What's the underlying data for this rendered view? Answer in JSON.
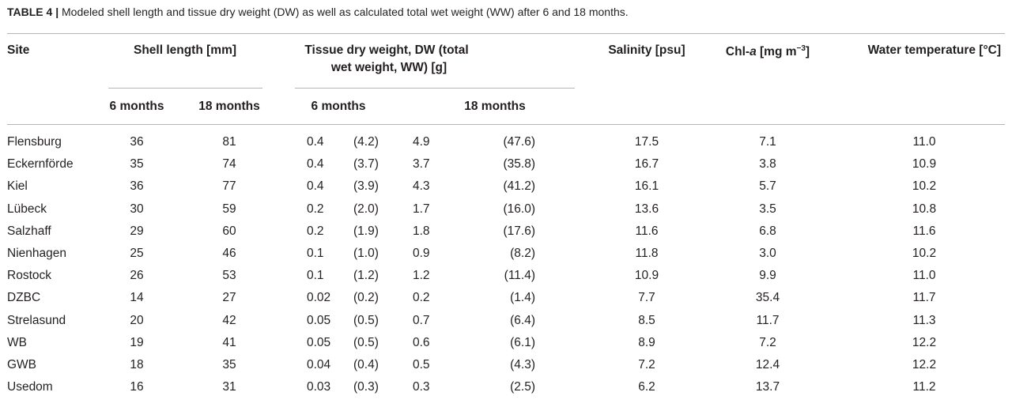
{
  "caption": {
    "label": "TABLE 4 |",
    "text": "Modeled shell length and tissue dry weight (DW) as well as calculated total wet weight (WW) after 6 and 18 months."
  },
  "headers": {
    "site": "Site",
    "shell_length": "Shell length [mm]",
    "tissue_line1": "Tissue dry weight, DW (total",
    "tissue_line2": "wet weight, WW) [g]",
    "salinity": "Salinity [psu]",
    "chla_prefix": "Chl-",
    "chla_italic": "a",
    "chla_unit": " [mg m",
    "chla_sup": "−3",
    "chla_close": "]",
    "water_temp": "Water temperature [°C]",
    "sl_6": "6 months",
    "sl_18": "18 months",
    "dw_6": "6 months",
    "dw_18": "18 months"
  },
  "rows": [
    {
      "site": "Flensburg",
      "sl6": "36",
      "sl18": "81",
      "dw6": "0.4",
      "ww6": "(4.2)",
      "dw18": "4.9",
      "ww18": "(47.6)",
      "sal": "17.5",
      "chl": "7.1",
      "temp": "11.0"
    },
    {
      "site": "Eckernförde",
      "sl6": "35",
      "sl18": "74",
      "dw6": "0.4",
      "ww6": "(3.7)",
      "dw18": "3.7",
      "ww18": "(35.8)",
      "sal": "16.7",
      "chl": "3.8",
      "temp": "10.9"
    },
    {
      "site": "Kiel",
      "sl6": "36",
      "sl18": "77",
      "dw6": "0.4",
      "ww6": "(3.9)",
      "dw18": "4.3",
      "ww18": "(41.2)",
      "sal": "16.1",
      "chl": "5.7",
      "temp": "10.2"
    },
    {
      "site": "Lübeck",
      "sl6": "30",
      "sl18": "59",
      "dw6": "0.2",
      "ww6": "(2.0)",
      "dw18": "1.7",
      "ww18": "(16.0)",
      "sal": "13.6",
      "chl": "3.5",
      "temp": "10.8"
    },
    {
      "site": "Salzhaff",
      "sl6": "29",
      "sl18": "60",
      "dw6": "0.2",
      "ww6": "(1.9)",
      "dw18": "1.8",
      "ww18": "(17.6)",
      "sal": "11.6",
      "chl": "6.8",
      "temp": "11.6"
    },
    {
      "site": "Nienhagen",
      "sl6": "25",
      "sl18": "46",
      "dw6": "0.1",
      "ww6": "(1.0)",
      "dw18": "0.9",
      "ww18": "(8.2)",
      "sal": "11.8",
      "chl": "3.0",
      "temp": "10.2"
    },
    {
      "site": "Rostock",
      "sl6": "26",
      "sl18": "53",
      "dw6": "0.1",
      "ww6": "(1.2)",
      "dw18": "1.2",
      "ww18": "(11.4)",
      "sal": "10.9",
      "chl": "9.9",
      "temp": "11.0"
    },
    {
      "site": "DZBC",
      "sl6": "14",
      "sl18": "27",
      "dw6": "0.02",
      "ww6": "(0.2)",
      "dw18": "0.2",
      "ww18": "(1.4)",
      "sal": "7.7",
      "chl": "35.4",
      "temp": "11.7"
    },
    {
      "site": "Strelasund",
      "sl6": "20",
      "sl18": "42",
      "dw6": "0.05",
      "ww6": "(0.5)",
      "dw18": "0.7",
      "ww18": "(6.4)",
      "sal": "8.5",
      "chl": "11.7",
      "temp": "11.3"
    },
    {
      "site": "WB",
      "sl6": "19",
      "sl18": "41",
      "dw6": "0.05",
      "ww6": "(0.5)",
      "dw18": "0.6",
      "ww18": "(6.1)",
      "sal": "8.9",
      "chl": "7.2",
      "temp": "12.2"
    },
    {
      "site": "GWB",
      "sl6": "18",
      "sl18": "35",
      "dw6": "0.04",
      "ww6": "(0.4)",
      "dw18": "0.5",
      "ww18": "(4.3)",
      "sal": "7.2",
      "chl": "12.4",
      "temp": "12.2"
    },
    {
      "site": "Usedom",
      "sl6": "16",
      "sl18": "31",
      "dw6": "0.03",
      "ww6": "(0.3)",
      "dw18": "0.3",
      "ww18": "(2.5)",
      "sal": "6.2",
      "chl": "13.7",
      "temp": "11.2"
    }
  ]
}
